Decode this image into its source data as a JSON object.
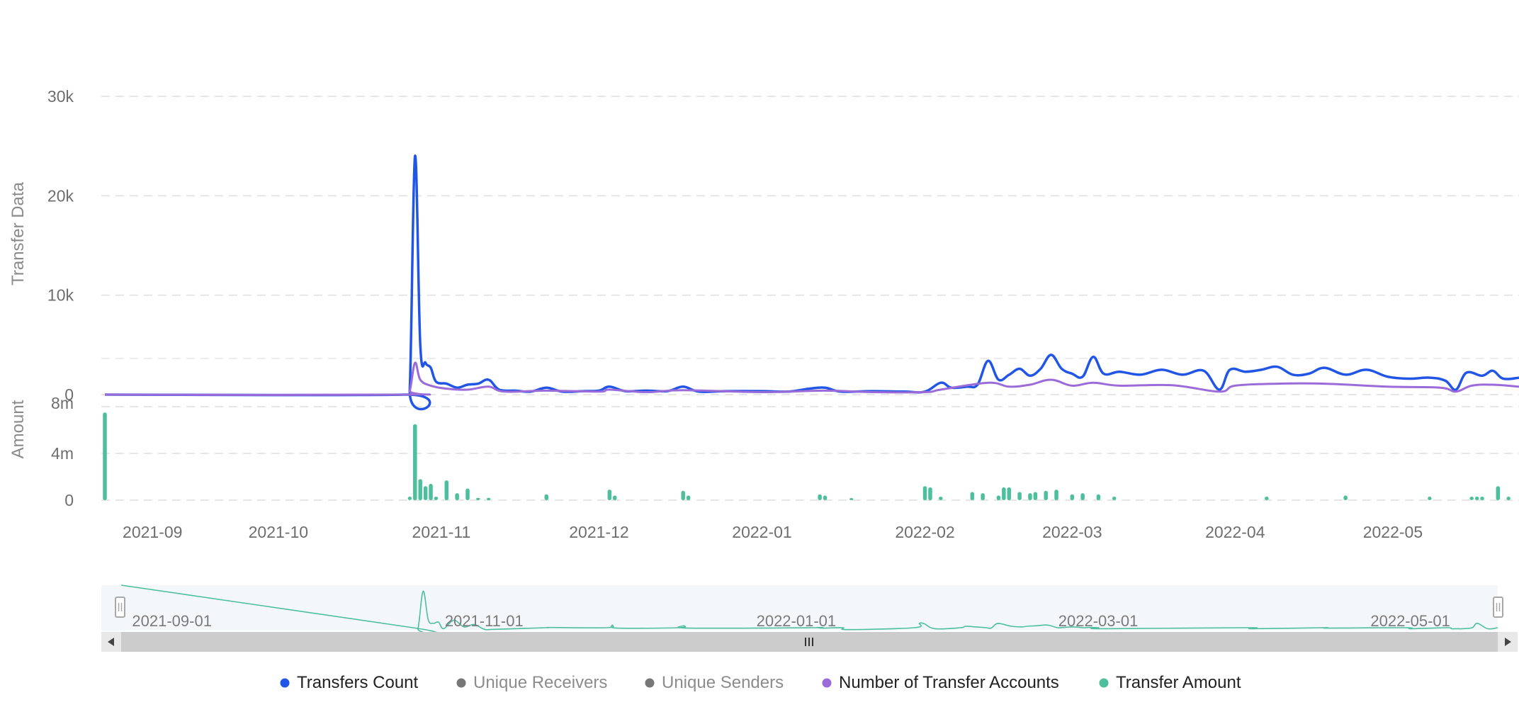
{
  "chart_data": {
    "type": "line",
    "title": "",
    "panels": {
      "top": {
        "ylabel": "Transfer Data",
        "ylim": [
          0,
          30000
        ],
        "yticks": [
          {
            "value": 0,
            "label": "0"
          },
          {
            "value": 10000,
            "label": "10k"
          },
          {
            "value": 20000,
            "label": "20k"
          },
          {
            "value": 30000,
            "label": "30k"
          }
        ]
      },
      "bottom": {
        "ylabel": "Amount",
        "ylim": [
          0,
          8000000
        ],
        "yticks": [
          {
            "value": 0,
            "label": "0"
          },
          {
            "value": 4000000,
            "label": "4m"
          },
          {
            "value": 8000000,
            "label": "8m"
          }
        ]
      }
    },
    "x_range": [
      "2021-08-29",
      "2022-05-25"
    ],
    "x_ticks": [
      {
        "date": "2021-09-01",
        "label": "2021-09"
      },
      {
        "date": "2021-10-01",
        "label": "2021-10"
      },
      {
        "date": "2021-11-01",
        "label": "2021-11"
      },
      {
        "date": "2021-12-01",
        "label": "2021-12"
      },
      {
        "date": "2022-01-01",
        "label": "2022-01"
      },
      {
        "date": "2022-02-01",
        "label": "2022-02"
      },
      {
        "date": "2022-03-01",
        "label": "2022-03"
      },
      {
        "date": "2022-04-01",
        "label": "2022-04"
      },
      {
        "date": "2022-05-01",
        "label": "2022-05"
      }
    ],
    "datazoom_ticks": [
      "2021-09-01",
      "2021-11-01",
      "2022-01-01",
      "2022-03-01",
      "2022-05-01"
    ],
    "series": [
      {
        "name": "Transfers Count",
        "color": "#2155e6",
        "visible": true,
        "panel": "top",
        "points": [
          [
            "2021-08-29",
            0
          ],
          [
            "2021-10-25",
            0
          ],
          [
            "2021-10-26",
            600
          ],
          [
            "2021-10-27",
            24000
          ],
          [
            "2021-10-28",
            5000
          ],
          [
            "2021-10-29",
            3200
          ],
          [
            "2021-10-30",
            2700
          ],
          [
            "2021-10-31",
            1300
          ],
          [
            "2021-11-02",
            1100
          ],
          [
            "2021-11-04",
            700
          ],
          [
            "2021-11-06",
            1000
          ],
          [
            "2021-11-08",
            1100
          ],
          [
            "2021-11-10",
            1500
          ],
          [
            "2021-11-12",
            500
          ],
          [
            "2021-11-15",
            400
          ],
          [
            "2021-11-18",
            300
          ],
          [
            "2021-11-21",
            700
          ],
          [
            "2021-11-24",
            300
          ],
          [
            "2021-11-28",
            350
          ],
          [
            "2021-12-01",
            400
          ],
          [
            "2021-12-03",
            800
          ],
          [
            "2021-12-06",
            350
          ],
          [
            "2021-12-10",
            400
          ],
          [
            "2021-12-14",
            350
          ],
          [
            "2021-12-17",
            800
          ],
          [
            "2021-12-20",
            300
          ],
          [
            "2021-12-25",
            350
          ],
          [
            "2022-01-01",
            350
          ],
          [
            "2022-01-06",
            300
          ],
          [
            "2022-01-10",
            600
          ],
          [
            "2022-01-13",
            700
          ],
          [
            "2022-01-16",
            300
          ],
          [
            "2022-01-22",
            350
          ],
          [
            "2022-01-28",
            300
          ],
          [
            "2022-02-01",
            300
          ],
          [
            "2022-02-04",
            1200
          ],
          [
            "2022-02-06",
            700
          ],
          [
            "2022-02-09",
            800
          ],
          [
            "2022-02-11",
            1000
          ],
          [
            "2022-02-13",
            3400
          ],
          [
            "2022-02-15",
            1500
          ],
          [
            "2022-02-17",
            2000
          ],
          [
            "2022-02-19",
            2600
          ],
          [
            "2022-02-21",
            1900
          ],
          [
            "2022-02-23",
            2600
          ],
          [
            "2022-02-25",
            4000
          ],
          [
            "2022-02-27",
            2600
          ],
          [
            "2022-03-01",
            2100
          ],
          [
            "2022-03-03",
            1800
          ],
          [
            "2022-03-05",
            3800
          ],
          [
            "2022-03-07",
            2100
          ],
          [
            "2022-03-10",
            2300
          ],
          [
            "2022-03-14",
            2000
          ],
          [
            "2022-03-18",
            2500
          ],
          [
            "2022-03-22",
            2000
          ],
          [
            "2022-03-26",
            2400
          ],
          [
            "2022-03-29",
            500
          ],
          [
            "2022-03-31",
            2500
          ],
          [
            "2022-04-03",
            2300
          ],
          [
            "2022-04-06",
            2500
          ],
          [
            "2022-04-09",
            2800
          ],
          [
            "2022-04-12",
            2000
          ],
          [
            "2022-04-15",
            2100
          ],
          [
            "2022-04-18",
            2700
          ],
          [
            "2022-04-22",
            2000
          ],
          [
            "2022-04-26",
            2500
          ],
          [
            "2022-04-30",
            1800
          ],
          [
            "2022-05-04",
            1600
          ],
          [
            "2022-05-08",
            1700
          ],
          [
            "2022-05-11",
            1400
          ],
          [
            "2022-05-13",
            500
          ],
          [
            "2022-05-15",
            2200
          ],
          [
            "2022-05-18",
            1900
          ],
          [
            "2022-05-20",
            2400
          ],
          [
            "2022-05-22",
            1600
          ],
          [
            "2022-05-25",
            1700
          ]
        ]
      },
      {
        "name": "Unique Receivers",
        "color": "#888888",
        "visible": false,
        "panel": "top",
        "points": []
      },
      {
        "name": "Unique Senders",
        "color": "#888888",
        "visible": false,
        "panel": "top",
        "points": []
      },
      {
        "name": "Number of Transfer Accounts",
        "color": "#9b6bd9",
        "visible": true,
        "panel": "top",
        "points": [
          [
            "2021-08-29",
            0
          ],
          [
            "2021-10-25",
            0
          ],
          [
            "2021-10-26",
            400
          ],
          [
            "2021-10-27",
            3200
          ],
          [
            "2021-10-28",
            1500
          ],
          [
            "2021-10-30",
            900
          ],
          [
            "2021-11-02",
            600
          ],
          [
            "2021-11-06",
            500
          ],
          [
            "2021-11-10",
            800
          ],
          [
            "2021-11-13",
            300
          ],
          [
            "2021-11-21",
            400
          ],
          [
            "2021-12-01",
            300
          ],
          [
            "2021-12-03",
            500
          ],
          [
            "2021-12-10",
            250
          ],
          [
            "2021-12-17",
            450
          ],
          [
            "2022-01-01",
            250
          ],
          [
            "2022-01-13",
            400
          ],
          [
            "2022-01-22",
            250
          ],
          [
            "2022-02-01",
            250
          ],
          [
            "2022-02-04",
            500
          ],
          [
            "2022-02-13",
            1200
          ],
          [
            "2022-02-17",
            800
          ],
          [
            "2022-02-21",
            1000
          ],
          [
            "2022-02-25",
            1500
          ],
          [
            "2022-03-01",
            900
          ],
          [
            "2022-03-05",
            1200
          ],
          [
            "2022-03-10",
            900
          ],
          [
            "2022-03-20",
            950
          ],
          [
            "2022-03-29",
            300
          ],
          [
            "2022-04-01",
            900
          ],
          [
            "2022-04-09",
            1100
          ],
          [
            "2022-04-18",
            1100
          ],
          [
            "2022-04-30",
            800
          ],
          [
            "2022-05-10",
            700
          ],
          [
            "2022-05-13",
            300
          ],
          [
            "2022-05-16",
            900
          ],
          [
            "2022-05-20",
            1000
          ],
          [
            "2022-05-25",
            800
          ]
        ]
      },
      {
        "name": "Transfer Amount",
        "color": "#4dbf9c",
        "visible": true,
        "panel": "bottom",
        "points": [
          [
            "2021-08-29",
            7500000
          ],
          [
            "2021-10-26",
            300000
          ],
          [
            "2021-10-27",
            6500000
          ],
          [
            "2021-10-28",
            1800000
          ],
          [
            "2021-10-29",
            1200000
          ],
          [
            "2021-10-30",
            1400000
          ],
          [
            "2021-10-31",
            300000
          ],
          [
            "2021-11-02",
            1700000
          ],
          [
            "2021-11-04",
            600000
          ],
          [
            "2021-11-06",
            1000000
          ],
          [
            "2021-11-08",
            200000
          ],
          [
            "2021-11-10",
            200000
          ],
          [
            "2021-11-21",
            500000
          ],
          [
            "2021-12-03",
            900000
          ],
          [
            "2021-12-04",
            400000
          ],
          [
            "2021-12-17",
            800000
          ],
          [
            "2021-12-18",
            400000
          ],
          [
            "2022-01-12",
            500000
          ],
          [
            "2022-01-13",
            400000
          ],
          [
            "2022-01-18",
            150000
          ],
          [
            "2022-02-01",
            1200000
          ],
          [
            "2022-02-02",
            1100000
          ],
          [
            "2022-02-04",
            300000
          ],
          [
            "2022-02-10",
            700000
          ],
          [
            "2022-02-12",
            600000
          ],
          [
            "2022-02-15",
            400000
          ],
          [
            "2022-02-16",
            1100000
          ],
          [
            "2022-02-17",
            1100000
          ],
          [
            "2022-02-19",
            700000
          ],
          [
            "2022-02-21",
            600000
          ],
          [
            "2022-02-22",
            700000
          ],
          [
            "2022-02-24",
            800000
          ],
          [
            "2022-02-26",
            900000
          ],
          [
            "2022-03-01",
            500000
          ],
          [
            "2022-03-03",
            600000
          ],
          [
            "2022-03-06",
            500000
          ],
          [
            "2022-03-09",
            300000
          ],
          [
            "2022-04-07",
            300000
          ],
          [
            "2022-04-22",
            400000
          ],
          [
            "2022-05-08",
            300000
          ],
          [
            "2022-05-16",
            300000
          ],
          [
            "2022-05-17",
            300000
          ],
          [
            "2022-05-18",
            300000
          ],
          [
            "2022-05-21",
            1200000
          ],
          [
            "2022-05-23",
            300000
          ]
        ]
      }
    ],
    "legend": {
      "placement": "bottom-center"
    }
  }
}
